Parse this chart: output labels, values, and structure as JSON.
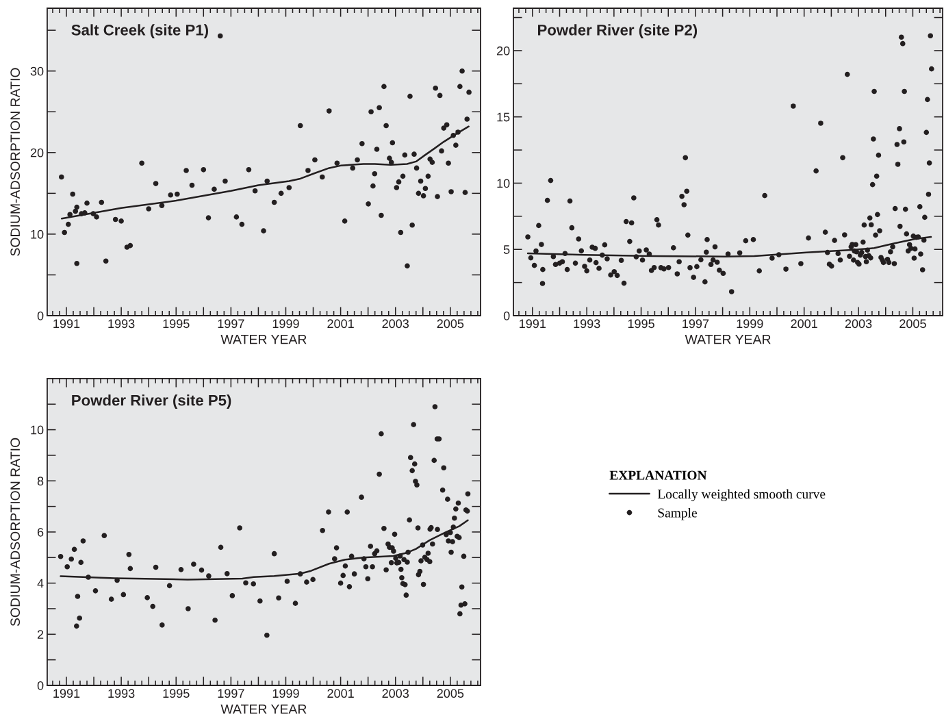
{
  "chart_data": [
    {
      "type": "scatter",
      "title": "Salt Creek (site P1)",
      "xlabel": "WATER YEAR",
      "ylabel": "SODIUM-ADSORPTION RATIO",
      "xlim": [
        1990.3,
        2006.1
      ],
      "ylim": [
        0,
        37.7
      ],
      "xticks": [
        1991,
        {
          "value": 1992,
          "label": null
        },
        1993,
        {
          "value": 1994,
          "label": null
        },
        1995,
        {
          "value": 1996,
          "label": null
        },
        1997,
        {
          "value": 1998,
          "label": null
        },
        1999,
        {
          "value": 2000,
          "label": null
        },
        2001,
        {
          "value": 2002,
          "label": null
        },
        2003,
        {
          "value": 2004,
          "label": null
        },
        2005
      ],
      "yticks": [
        0,
        {
          "value": 5,
          "label": null
        },
        10,
        {
          "value": 15,
          "label": null
        },
        20,
        {
          "value": 25,
          "label": null
        },
        30,
        {
          "value": 35,
          "label": null
        }
      ],
      "series": [
        {
          "type": "line",
          "color": "#231f20",
          "line_style": "solid",
          "x": [
            1990.83,
            1993,
            1995,
            1997,
            1998,
            1999.12,
            1999.53,
            2000.0,
            2000.58,
            2001.0,
            2001.83,
            2002.25,
            2002.83,
            2003.42,
            2003.75,
            2004.08,
            2004.42,
            2004.75,
            2005.17,
            2005.67
          ],
          "values": [
            11.9,
            13.2,
            14.1,
            15.3,
            16.0,
            16.5,
            16.8,
            17.4,
            18.1,
            18.4,
            18.6,
            18.6,
            18.5,
            18.6,
            18.9,
            19.7,
            20.5,
            21.3,
            22.2,
            23.2
          ]
        },
        {
          "color": "#231f20",
          "marker": "circle",
          "x": [
            1990.82,
            1990.93,
            1991.07,
            1991.13,
            1991.23,
            1991.33,
            1991.38,
            1991.38,
            1991.55,
            1991.67,
            1991.75,
            1991.98,
            1992.1,
            1992.28,
            1992.44,
            1992.79,
            1993.0,
            1993.21,
            1993.33,
            1993.75,
            1994.0,
            1994.26,
            1994.48,
            1994.8,
            1995.04,
            1995.37,
            1995.58,
            1996.0,
            1996.18,
            1996.39,
            1996.61,
            1996.79,
            1997.2,
            1997.4,
            1997.65,
            1997.88,
            1998.19,
            1998.32,
            1998.58,
            1998.83,
            1999.12,
            1999.53,
            1999.81,
            2000.06,
            2000.33,
            2000.58,
            2000.87,
            2001.15,
            2001.44,
            2001.61,
            2001.78,
            2002.01,
            2002.11,
            2002.18,
            2002.24,
            2002.32,
            2002.41,
            2002.48,
            2002.58,
            2002.66,
            2002.78,
            2002.85,
            2002.89,
            2003.04,
            2003.12,
            2003.19,
            2003.27,
            2003.34,
            2003.43,
            2003.53,
            2003.61,
            2003.68,
            2003.77,
            2003.84,
            2003.92,
            2004.02,
            2004.09,
            2004.19,
            2004.26,
            2004.34,
            2004.46,
            2004.53,
            2004.62,
            2004.68,
            2004.76,
            2004.87,
            2004.93,
            2005.03,
            2005.11,
            2005.2,
            2005.28,
            2005.35,
            2005.43,
            2005.54,
            2005.61,
            2005.68
          ],
          "values": [
            17.0,
            10.2,
            11.2,
            12.4,
            14.9,
            12.8,
            13.3,
            6.4,
            12.5,
            12.6,
            13.8,
            12.5,
            12.1,
            13.9,
            6.7,
            11.8,
            11.6,
            8.4,
            8.6,
            18.7,
            13.1,
            16.2,
            13.5,
            14.8,
            14.9,
            17.8,
            16.0,
            17.9,
            12.0,
            15.5,
            34.3,
            16.5,
            12.1,
            11.2,
            17.9,
            15.3,
            10.4,
            16.5,
            13.9,
            15.0,
            15.7,
            23.3,
            17.8,
            19.1,
            17.0,
            25.1,
            18.7,
            11.6,
            18.1,
            19.1,
            21.1,
            13.7,
            25.0,
            15.9,
            17.4,
            20.4,
            25.5,
            12.3,
            28.1,
            23.3,
            19.3,
            18.8,
            21.2,
            15.7,
            16.4,
            10.2,
            17.1,
            19.7,
            6.1,
            26.9,
            11.1,
            19.8,
            18.1,
            15.0,
            16.5,
            14.7,
            15.6,
            17.1,
            19.2,
            18.8,
            27.9,
            14.6,
            27.0,
            20.2,
            23.0,
            23.4,
            18.7,
            15.2,
            22.1,
            20.9,
            22.5,
            28.1,
            30.0,
            15.1,
            24.1,
            27.4
          ]
        }
      ]
    },
    {
      "type": "scatter",
      "title": "Powder River (site P2)",
      "xlabel": "WATER YEAR",
      "xlim": [
        1990.3,
        2006.1
      ],
      "ylim": [
        0,
        23.2
      ],
      "xticks": [
        1991,
        {
          "value": 1992,
          "label": null
        },
        1993,
        {
          "value": 1994,
          "label": null
        },
        1995,
        {
          "value": 1996,
          "label": null
        },
        1997,
        {
          "value": 1998,
          "label": null
        },
        1999,
        {
          "value": 2000,
          "label": null
        },
        2001,
        {
          "value": 2002,
          "label": null
        },
        2003,
        {
          "value": 2004,
          "label": null
        },
        2005
      ],
      "yticks": [
        0,
        {
          "value": 2.5,
          "label": null
        },
        5,
        {
          "value": 7.5,
          "label": null
        },
        10,
        {
          "value": 12.5,
          "label": null
        },
        15,
        {
          "value": 17.5,
          "label": null
        },
        20,
        {
          "value": 22.5,
          "label": null
        }
      ],
      "series": [
        {
          "type": "line",
          "color": "#231f20",
          "line_style": "solid",
          "x": [
            1990.83,
            1992.92,
            1995.42,
            1998.08,
            1999.17,
            2001.08,
            2002.75,
            2003.58,
            2004.25,
            2005.08,
            2005.67
          ],
          "values": [
            4.7,
            4.58,
            4.5,
            4.46,
            4.5,
            4.77,
            4.96,
            5.1,
            5.43,
            5.79,
            5.94
          ]
        },
        {
          "color": "#231f20",
          "marker": "circle",
          "x": [
            1990.83,
            1990.94,
            1991.07,
            1991.13,
            1991.23,
            1991.33,
            1991.38,
            1991.37,
            1991.55,
            1991.67,
            1991.77,
            1991.85,
            1992.0,
            1992.1,
            1992.2,
            1992.28,
            1992.38,
            1992.45,
            1992.58,
            1992.7,
            1992.8,
            1992.92,
            1993.0,
            1993.11,
            1993.2,
            1993.31,
            1993.34,
            1993.45,
            1993.57,
            1993.66,
            1993.75,
            1993.88,
            1994.01,
            1994.12,
            1994.27,
            1994.37,
            1994.45,
            1994.58,
            1994.65,
            1994.73,
            1994.82,
            1994.93,
            1995.05,
            1995.19,
            1995.3,
            1995.38,
            1995.48,
            1995.58,
            1995.64,
            1995.73,
            1995.84,
            1996.01,
            1996.19,
            1996.33,
            1996.4,
            1996.5,
            1996.58,
            1996.63,
            1996.68,
            1996.72,
            1996.8,
            1996.93,
            1997.05,
            1997.2,
            1997.35,
            1997.4,
            1997.43,
            1997.57,
            1997.65,
            1997.72,
            1997.8,
            1997.88,
            1998.02,
            1998.2,
            1998.33,
            1998.63,
            1998.85,
            1999.13,
            1999.35,
            1999.55,
            1999.82,
            2000.07,
            2000.33,
            2000.6,
            2000.88,
            2001.16,
            2001.44,
            2001.61,
            2001.78,
            2001.86,
            2001.93,
            2002.01,
            2002.12,
            2002.25,
            2002.33,
            2002.42,
            2002.49,
            2002.59,
            2002.67,
            2002.73,
            2002.77,
            2002.82,
            2002.85,
            2002.9,
            2002.93,
            2002.97,
            2003.02,
            2003.07,
            2003.12,
            2003.17,
            2003.21,
            2003.26,
            2003.29,
            2003.33,
            2003.38,
            2003.42,
            2003.47,
            2003.45,
            2003.52,
            2003.55,
            2003.58,
            2003.63,
            2003.67,
            2003.7,
            2003.74,
            2003.78,
            2003.83,
            2003.88,
            2003.92,
            2004.07,
            2004.12,
            2004.18,
            2004.26,
            2004.32,
            2004.35,
            2004.42,
            2004.45,
            2004.51,
            2004.53,
            2004.58,
            2004.63,
            2004.67,
            2004.69,
            2004.73,
            2004.77,
            2004.83,
            2004.88,
            2004.93,
            2005.02,
            2005.05,
            2005.08,
            2005.13,
            2005.2,
            2005.26,
            2005.29,
            2005.36,
            2005.41,
            2005.44,
            2005.5,
            2005.54,
            2005.58,
            2005.61,
            2005.65,
            2005.69
          ],
          "values": [
            5.94,
            4.36,
            3.79,
            4.88,
            6.8,
            5.37,
            3.48,
            2.43,
            8.7,
            10.2,
            4.46,
            3.86,
            3.96,
            4.07,
            4.69,
            3.48,
            8.65,
            6.63,
            3.96,
            5.79,
            4.89,
            3.72,
            3.38,
            4.2,
            5.17,
            5.08,
            4.0,
            3.57,
            4.57,
            5.34,
            4.29,
            3.07,
            3.32,
            3.03,
            4.17,
            2.45,
            7.1,
            5.6,
            7.0,
            8.89,
            4.44,
            4.88,
            4.2,
            4.96,
            4.65,
            3.41,
            3.63,
            7.24,
            6.84,
            3.62,
            3.53,
            3.63,
            5.12,
            3.15,
            4.07,
            9.0,
            8.37,
            11.92,
            9.39,
            6.08,
            3.62,
            2.89,
            3.7,
            4.22,
            2.55,
            4.79,
            5.74,
            3.86,
            4.2,
            5.19,
            4.03,
            3.43,
            3.19,
            4.65,
            1.81,
            4.74,
            5.65,
            5.74,
            3.38,
            9.06,
            4.34,
            4.6,
            3.51,
            15.81,
            3.93,
            5.86,
            10.92,
            14.52,
            6.3,
            4.77,
            3.88,
            3.74,
            5.68,
            4.69,
            4.2,
            11.92,
            6.1,
            18.21,
            4.48,
            5.19,
            5.37,
            4.19,
            4.88,
            5.36,
            4.82,
            4.01,
            3.89,
            4.57,
            4.77,
            5.55,
            6.84,
            4.46,
            4.07,
            4.94,
            4.53,
            7.37,
            6.86,
            4.36,
            9.89,
            13.33,
            16.92,
            6.08,
            10.53,
            7.63,
            12.11,
            6.41,
            4.39,
            4.2,
            4.01,
            4.25,
            4.01,
            4.82,
            5.19,
            3.93,
            8.08,
            12.92,
            11.42,
            14.11,
            6.74,
            21.02,
            20.53,
            13.11,
            16.92,
            8.03,
            6.17,
            4.88,
            5.36,
            5.08,
            6.0,
            4.34,
            5.03,
            5.91,
            5.94,
            8.22,
            4.65,
            3.46,
            5.7,
            7.42,
            13.83,
            16.31,
            9.16,
            11.52,
            21.12,
            18.62
          ]
        }
      ]
    },
    {
      "type": "scatter",
      "title": "Powder River (site P5)",
      "xlabel": "WATER YEAR",
      "ylabel": "SODIUM-ADSORPTION RATIO",
      "xlim": [
        1990.3,
        2006.1
      ],
      "ylim": [
        0,
        12
      ],
      "xticks": [
        1991,
        {
          "value": 1992,
          "label": null
        },
        1993,
        {
          "value": 1994,
          "label": null
        },
        1995,
        {
          "value": 1996,
          "label": null
        },
        1997,
        {
          "value": 1998,
          "label": null
        },
        1999,
        {
          "value": 2000,
          "label": null
        },
        2001,
        {
          "value": 2002,
          "label": null
        },
        2003,
        {
          "value": 2004,
          "label": null
        },
        2005
      ],
      "yticks": [
        0,
        {
          "value": 1,
          "label": null
        },
        2,
        {
          "value": 3,
          "label": null
        },
        4,
        {
          "value": 5,
          "label": null
        },
        6,
        {
          "value": 7,
          "label": null
        },
        8,
        {
          "value": 9,
          "label": null
        },
        10,
        {
          "value": 11,
          "label": null
        }
      ],
      "legend": "right",
      "legend_title": "EXPLANATION",
      "series": [
        {
          "type": "line",
          "name": "Locally weighted smooth curve",
          "color": "#231f20",
          "line_style": "solid",
          "x": [
            1990.79,
            1992.75,
            1995.42,
            1997.42,
            1997.83,
            1998.58,
            1999.53,
            1999.92,
            2000.58,
            2001.17,
            2001.83,
            2002.92,
            2003.42,
            2003.75,
            2004.25,
            2004.83,
            2005.33,
            2005.64
          ],
          "values": [
            4.27,
            4.19,
            4.14,
            4.18,
            4.24,
            4.28,
            4.37,
            4.48,
            4.76,
            4.92,
            5.0,
            5.06,
            5.19,
            5.34,
            5.68,
            5.99,
            6.23,
            6.46
          ]
        },
        {
          "name": "Sample",
          "color": "#231f20",
          "marker": "circle",
          "x": [
            1990.79,
            1991.03,
            1991.18,
            1991.29,
            1991.41,
            1991.37,
            1991.48,
            1991.53,
            1991.61,
            1991.8,
            1992.06,
            1992.38,
            1992.64,
            1992.85,
            1993.08,
            1993.28,
            1993.33,
            1993.95,
            1994.15,
            1994.26,
            1994.49,
            1994.76,
            1995.18,
            1995.44,
            1995.64,
            1995.93,
            1996.19,
            1996.42,
            1996.63,
            1996.86,
            1997.05,
            1997.32,
            1997.54,
            1997.82,
            1998.06,
            1998.31,
            1998.58,
            1998.74,
            1999.05,
            1999.35,
            1999.53,
            1999.76,
            1999.99,
            2000.34,
            2000.56,
            2000.78,
            2000.85,
            2001.0,
            2001.09,
            2001.17,
            2001.24,
            2001.32,
            2001.4,
            2001.5,
            2001.76,
            2001.85,
            2001.92,
            2001.99,
            2002.09,
            2002.16,
            2002.24,
            2002.32,
            2002.41,
            2002.48,
            2002.58,
            2002.66,
            2002.73,
            2002.78,
            2002.85,
            2002.88,
            2002.93,
            2002.97,
            2003.01,
            2003.05,
            2003.12,
            2003.17,
            2003.2,
            2003.23,
            2003.27,
            2003.35,
            2003.39,
            2003.31,
            2003.43,
            2003.46,
            2003.51,
            2003.55,
            2003.61,
            2003.66,
            2003.7,
            2003.73,
            2003.78,
            2003.82,
            2003.84,
            2003.89,
            2003.93,
            2003.99,
            2004.02,
            2004.07,
            2004.15,
            2004.19,
            2004.25,
            2004.26,
            2004.3,
            2004.35,
            2004.41,
            2004.44,
            2004.52,
            2004.59,
            2004.53,
            2004.72,
            2004.76,
            2004.85,
            2004.9,
            2004.93,
            2005.0,
            2005.03,
            2005.08,
            2005.11,
            2005.15,
            2005.2,
            2005.25,
            2005.29,
            2005.32,
            2005.35,
            2005.39,
            2005.42,
            2005.49,
            2005.53,
            2005.57,
            2005.62,
            2005.64
          ],
          "values": [
            5.04,
            4.64,
            4.94,
            5.32,
            3.48,
            2.32,
            2.63,
            4.81,
            5.65,
            4.23,
            3.7,
            5.86,
            3.37,
            4.11,
            3.55,
            5.12,
            4.57,
            3.43,
            3.09,
            4.62,
            2.36,
            3.9,
            4.53,
            3.0,
            4.74,
            4.51,
            4.28,
            2.55,
            5.4,
            4.37,
            3.51,
            6.16,
            4.01,
            3.97,
            3.3,
            1.96,
            5.15,
            3.42,
            4.07,
            3.21,
            4.36,
            4.04,
            4.14,
            6.06,
            6.78,
            4.95,
            5.38,
            4.0,
            4.3,
            4.67,
            6.78,
            3.86,
            5.05,
            4.36,
            7.36,
            4.95,
            4.64,
            4.17,
            5.44,
            4.64,
            5.15,
            5.26,
            8.26,
            9.84,
            6.14,
            4.52,
            5.53,
            5.4,
            4.8,
            5.38,
            5.25,
            5.91,
            4.97,
            4.79,
            4.81,
            5.06,
            4.54,
            4.21,
            3.98,
            3.94,
            3.53,
            4.92,
            4.82,
            5.21,
            6.47,
            8.91,
            8.4,
            10.2,
            8.66,
            7.98,
            7.84,
            6.16,
            4.33,
            4.46,
            4.87,
            5.49,
            3.95,
            5.01,
            4.92,
            5.17,
            4.84,
            6.11,
            6.17,
            5.53,
            8.8,
            10.9,
            9.64,
            9.64,
            6.1,
            7.64,
            8.51,
            5.9,
            7.28,
            5.65,
            5.98,
            5.21,
            5.62,
            6.19,
            6.54,
            6.9,
            5.83,
            7.13,
            5.78,
            2.8,
            3.14,
            3.85,
            5.05,
            3.19,
            6.86,
            6.82,
            7.49
          ]
        }
      ]
    }
  ]
}
